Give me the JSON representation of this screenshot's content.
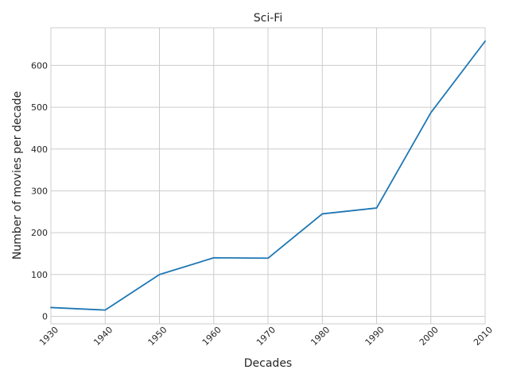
{
  "chart_data": {
    "type": "line",
    "title": "Sci-Fi",
    "xlabel": "Decades",
    "ylabel": "Number of movies per decade",
    "x": [
      "1930",
      "1940",
      "1950",
      "1960",
      "1970",
      "1980",
      "1990",
      "2000",
      "2010"
    ],
    "series": [
      {
        "values": [
          21,
          15,
          100,
          140,
          139,
          245,
          259,
          487,
          658
        ]
      }
    ],
    "xlim": [
      1930,
      2010
    ],
    "ylim": [
      -18,
      690
    ],
    "yticks": [
      0,
      100,
      200,
      300,
      400,
      500,
      600
    ],
    "grid": true,
    "line_color": "#1f77b4"
  }
}
